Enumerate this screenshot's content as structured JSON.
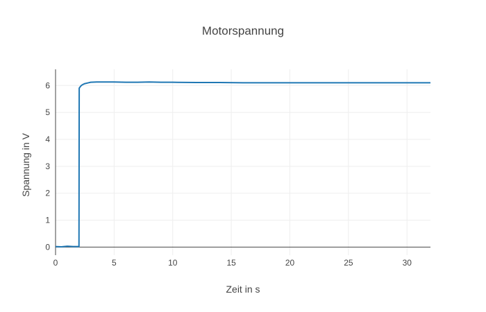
{
  "chart_data": {
    "type": "line",
    "title": "Motorspannung",
    "xlabel": "Zeit in s",
    "ylabel": "Spannung in V",
    "xlim": [
      0,
      32
    ],
    "ylim": [
      -0.3,
      6.6
    ],
    "xticks": [
      0,
      5,
      10,
      15,
      20,
      25,
      30
    ],
    "yticks": [
      0,
      1,
      2,
      3,
      4,
      5,
      6
    ],
    "grid": true,
    "legend": "none",
    "colors": {
      "series": "#1f77b4"
    },
    "series": [
      {
        "x": [
          0,
          0.5,
          1.0,
          1.5,
          1.9,
          2.0,
          2.02,
          2.05,
          2.1,
          2.2,
          2.3,
          2.5,
          2.8,
          3.0,
          3.5,
          4.0,
          5.0,
          6.0,
          7.0,
          8.0,
          9.0,
          10.0,
          12.0,
          14.0,
          16.0,
          18.0,
          20.0,
          22.0,
          24.0,
          26.0,
          28.0,
          30.0,
          32.0
        ],
        "y": [
          0.02,
          0.01,
          0.03,
          0.02,
          0.02,
          0.02,
          5.9,
          5.92,
          5.95,
          6.0,
          6.03,
          6.07,
          6.1,
          6.12,
          6.13,
          6.13,
          6.13,
          6.12,
          6.12,
          6.13,
          6.12,
          6.12,
          6.11,
          6.11,
          6.1,
          6.1,
          6.1,
          6.1,
          6.1,
          6.1,
          6.1,
          6.1,
          6.1
        ]
      }
    ]
  }
}
